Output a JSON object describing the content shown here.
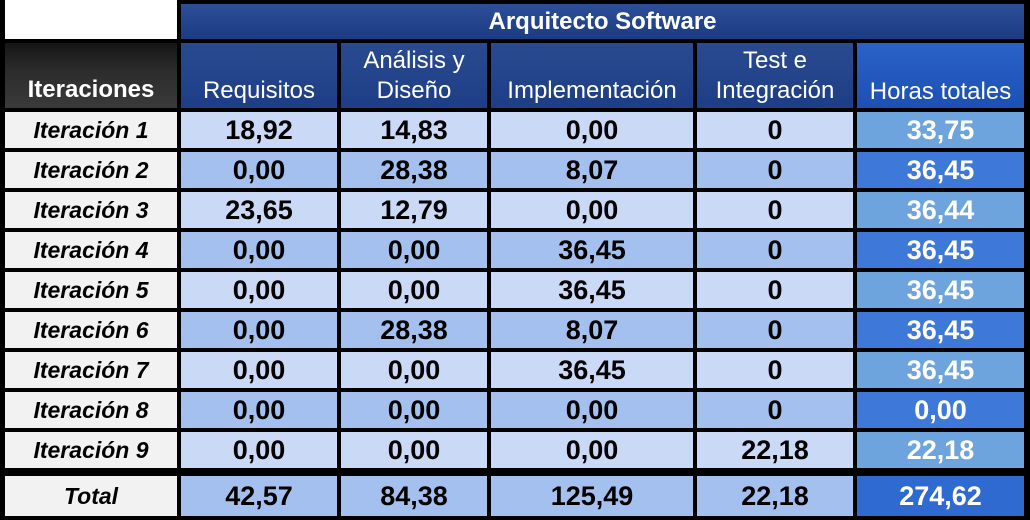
{
  "table": {
    "title": "Arquitecto Software",
    "corner_header": "Iteraciones",
    "columns": [
      "Requisitos",
      "Análisis y\nDiseño",
      "Implementación",
      "Test e\nIntegración",
      "Horas totales"
    ],
    "rows": [
      {
        "label": "Iteración 1",
        "values": [
          "18,92",
          "14,83",
          "0,00",
          "0",
          "33,75"
        ]
      },
      {
        "label": "Iteración 2",
        "values": [
          "0,00",
          "28,38",
          "8,07",
          "0",
          "36,45"
        ]
      },
      {
        "label": "Iteración 3",
        "values": [
          "23,65",
          "12,79",
          "0,00",
          "0",
          "36,44"
        ]
      },
      {
        "label": "Iteración 4",
        "values": [
          "0,00",
          "0,00",
          "36,45",
          "0",
          "36,45"
        ]
      },
      {
        "label": "Iteración 5",
        "values": [
          "0,00",
          "0,00",
          "36,45",
          "0",
          "36,45"
        ]
      },
      {
        "label": "Iteración 6",
        "values": [
          "0,00",
          "28,38",
          "8,07",
          "0",
          "36,45"
        ]
      },
      {
        "label": "Iteración 7",
        "values": [
          "0,00",
          "0,00",
          "36,45",
          "0",
          "36,45"
        ]
      },
      {
        "label": "Iteración 8",
        "values": [
          "0,00",
          "0,00",
          "0,00",
          "0",
          "0,00"
        ]
      },
      {
        "label": "Iteración 9",
        "values": [
          "0,00",
          "0,00",
          "0,00",
          "22,18",
          "22,18"
        ]
      }
    ],
    "total_row": {
      "label": "Total",
      "values": [
        "42,57",
        "84,38",
        "125,49",
        "22,18",
        "274,62"
      ]
    }
  },
  "colors": {
    "light_row": "#c9d9f6",
    "dark_row": "#a4c0ef",
    "total_light": "#6ea4dd",
    "total_dark": "#3e78d8",
    "grand_total": "#2f6ad1",
    "header_blue": "#1e3f88"
  }
}
